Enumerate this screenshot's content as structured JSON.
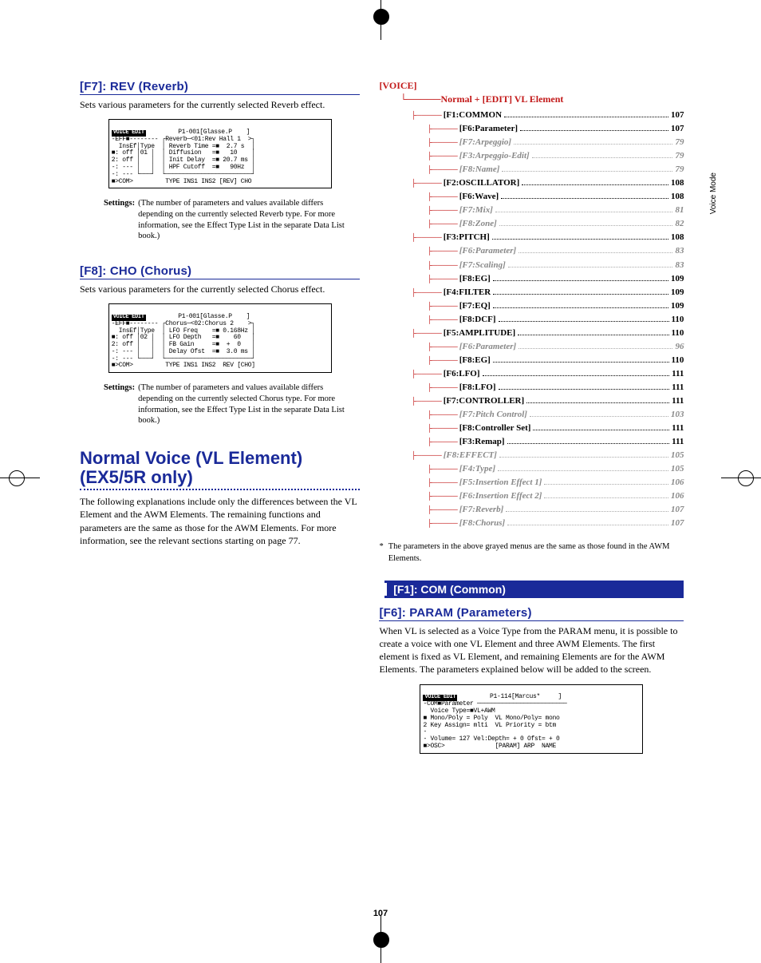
{
  "sideTab": "Voice Mode",
  "pageNumber": "107",
  "left": {
    "s1": {
      "heading": "[F7]: REV (Reverb)",
      "body": "Sets various parameters for the currently selected Reverb effect.",
      "lcdTitle": "VOICE EDIT",
      "lcdHeader": "P1-001[Glasse.P    ]",
      "lcdBody": "-EFF■-------- ┌Reverb─<01:Rev Hall 1  >┐\n  InsEf│Type  │ Reverb Time =■  2.7 s  │\n■: off │01 │  │ Diffusion   =■   10    │\n2: off │   │  │ Init Delay  =■ 20.7 ms │\n-: --- │   │  │ HPF Cutoff  =■   90Hz  │\n-: --- └───┘  └────────────────────────┘\n■>COM>         TYPE INS1 INS2 [REV] CHO",
      "settingsLabel": "Settings:",
      "settingsText": "(The number of parameters and values available differs depending on the currently selected Reverb type. For more information, see the Effect Type List in the separate Data List book.)"
    },
    "s2": {
      "heading": "[F8]: CHO (Chorus)",
      "body": "Sets various parameters for the currently selected Chorus effect.",
      "lcdTitle": "VOICE EDIT",
      "lcdHeader": "P1-001[Glasse.P    ]",
      "lcdBody": "-EFF■-------- ┌Chorus─<02:Chorus 2    >┐\n  InsEf│Type  │ LFO Freq    =■ 0.168Hz │\n■: off │02 │  │ LFO Depth   =■    60   │\n2: off │   │  │ FB Gain     =■  +  0   │\n-: --- │   │  │ Delay Ofst  =■  3.0 ms │\n-: --- └───┘  └────────────────────────┘\n■>COM>         TYPE INS1 INS2  REV [CHO]",
      "settingsLabel": "Settings:",
      "settingsText": "(The number of parameters and values available differs depending on the currently selected Chorus type. For more information, see the Effect Type List in the separate Data List book.)"
    },
    "big": {
      "heading": "Normal Voice (VL Element) (EX5/5R only)",
      "body": "The following explanations include only the differences between the VL Element and the AWM Elements. The remaining functions and parameters are the same as those for the AWM Elements. For more information, see the relevant sections starting on page 77."
    }
  },
  "right": {
    "voiceLabel": "[VOICE]",
    "treeRoot": "Normal + [EDIT]   VL Element",
    "toc": [
      {
        "l": "[F1:COMMON",
        "p": "107",
        "sub": false,
        "gray": false
      },
      {
        "l": "[F6:Parameter]",
        "p": "107",
        "sub": true,
        "gray": false
      },
      {
        "l": "[F7:Arpeggio]",
        "p": "79",
        "sub": true,
        "gray": true
      },
      {
        "l": "[F3:Arpeggio-Edit]",
        "p": "79",
        "sub": true,
        "gray": true
      },
      {
        "l": "[F8:Name]",
        "p": "79",
        "sub": true,
        "gray": true
      },
      {
        "l": "[F2:OSCILLATOR]",
        "p": "108",
        "sub": false,
        "gray": false
      },
      {
        "l": "[F6:Wave]",
        "p": "108",
        "sub": true,
        "gray": false
      },
      {
        "l": "[F7:Mix]",
        "p": "81",
        "sub": true,
        "gray": true
      },
      {
        "l": "[F8:Zone]",
        "p": "82",
        "sub": true,
        "gray": true
      },
      {
        "l": "[F3:PITCH]",
        "p": "108",
        "sub": false,
        "gray": false
      },
      {
        "l": "[F6:Parameter]",
        "p": "83",
        "sub": true,
        "gray": true
      },
      {
        "l": "[F7:Scaling]",
        "p": "83",
        "sub": true,
        "gray": true
      },
      {
        "l": "[F8:EG]",
        "p": "109",
        "sub": true,
        "gray": false
      },
      {
        "l": "[F4:FILTER",
        "p": "109",
        "sub": false,
        "gray": false
      },
      {
        "l": "[F7:EQ]",
        "p": "109",
        "sub": true,
        "gray": false
      },
      {
        "l": "[F8:DCF]",
        "p": "110",
        "sub": true,
        "gray": false
      },
      {
        "l": "[F5:AMPLITUDE]",
        "p": "110",
        "sub": false,
        "gray": false
      },
      {
        "l": "[F6:Parameter]",
        "p": "96",
        "sub": true,
        "gray": true
      },
      {
        "l": "[F8:EG]",
        "p": "110",
        "sub": true,
        "gray": false
      },
      {
        "l": "[F6:LFO]",
        "p": "111",
        "sub": false,
        "gray": false
      },
      {
        "l": "[F8:LFO]",
        "p": "111",
        "sub": true,
        "gray": false
      },
      {
        "l": "[F7:CONTROLLER]",
        "p": "111",
        "sub": false,
        "gray": false
      },
      {
        "l": "[F7:Pitch Control]",
        "p": "103",
        "sub": true,
        "gray": true
      },
      {
        "l": "[F8:Controller Set]",
        "p": "111",
        "sub": true,
        "gray": false
      },
      {
        "l": "[F3:Remap]",
        "p": "111",
        "sub": true,
        "gray": false
      },
      {
        "l": "[F8:EFFECT]",
        "p": "105",
        "sub": false,
        "gray": true
      },
      {
        "l": "[F4:Type]",
        "p": "105",
        "sub": true,
        "gray": true
      },
      {
        "l": "[F5:Insertion Effect 1]",
        "p": "106",
        "sub": true,
        "gray": true
      },
      {
        "l": "[F6:Insertion Effect 2]",
        "p": "106",
        "sub": true,
        "gray": true
      },
      {
        "l": "[F7:Reverb]",
        "p": "107",
        "sub": true,
        "gray": true
      },
      {
        "l": "[F8:Chorus]",
        "p": "107",
        "sub": true,
        "gray": true
      }
    ],
    "footnote": "The parameters in the above grayed menus are the same as those found in the AWM Elements.",
    "blueBar": "[F1]: COM (Common)",
    "s3": {
      "heading": "[F6]: PARAM (Parameters)",
      "body": "When VL is selected as a Voice Type from the PARAM menu, it is possible to create a voice with one VL Element and three AWM Elements. The first element is fixed as VL Element, and remaining Elements are for the AWM Elements. The parameters explained below will be added to the screen.",
      "lcdTitle": "VOICE EDIT",
      "lcdHeader": "P1-114[Marcus*     ]",
      "lcdBody": "-COM■Parameter ─────────────────────────\n  Voice Type=■VL+AWM\n■ Mono/Poly = Poly  VL Mono/Poly= mono\n2 Key Assign= mlti  VL Priority = btm\n-\n- Volume= 127 Vel:Depth= + 0 Ofst= + 0\n■>OSC>              [PARAM] ARP  NAME"
    }
  }
}
